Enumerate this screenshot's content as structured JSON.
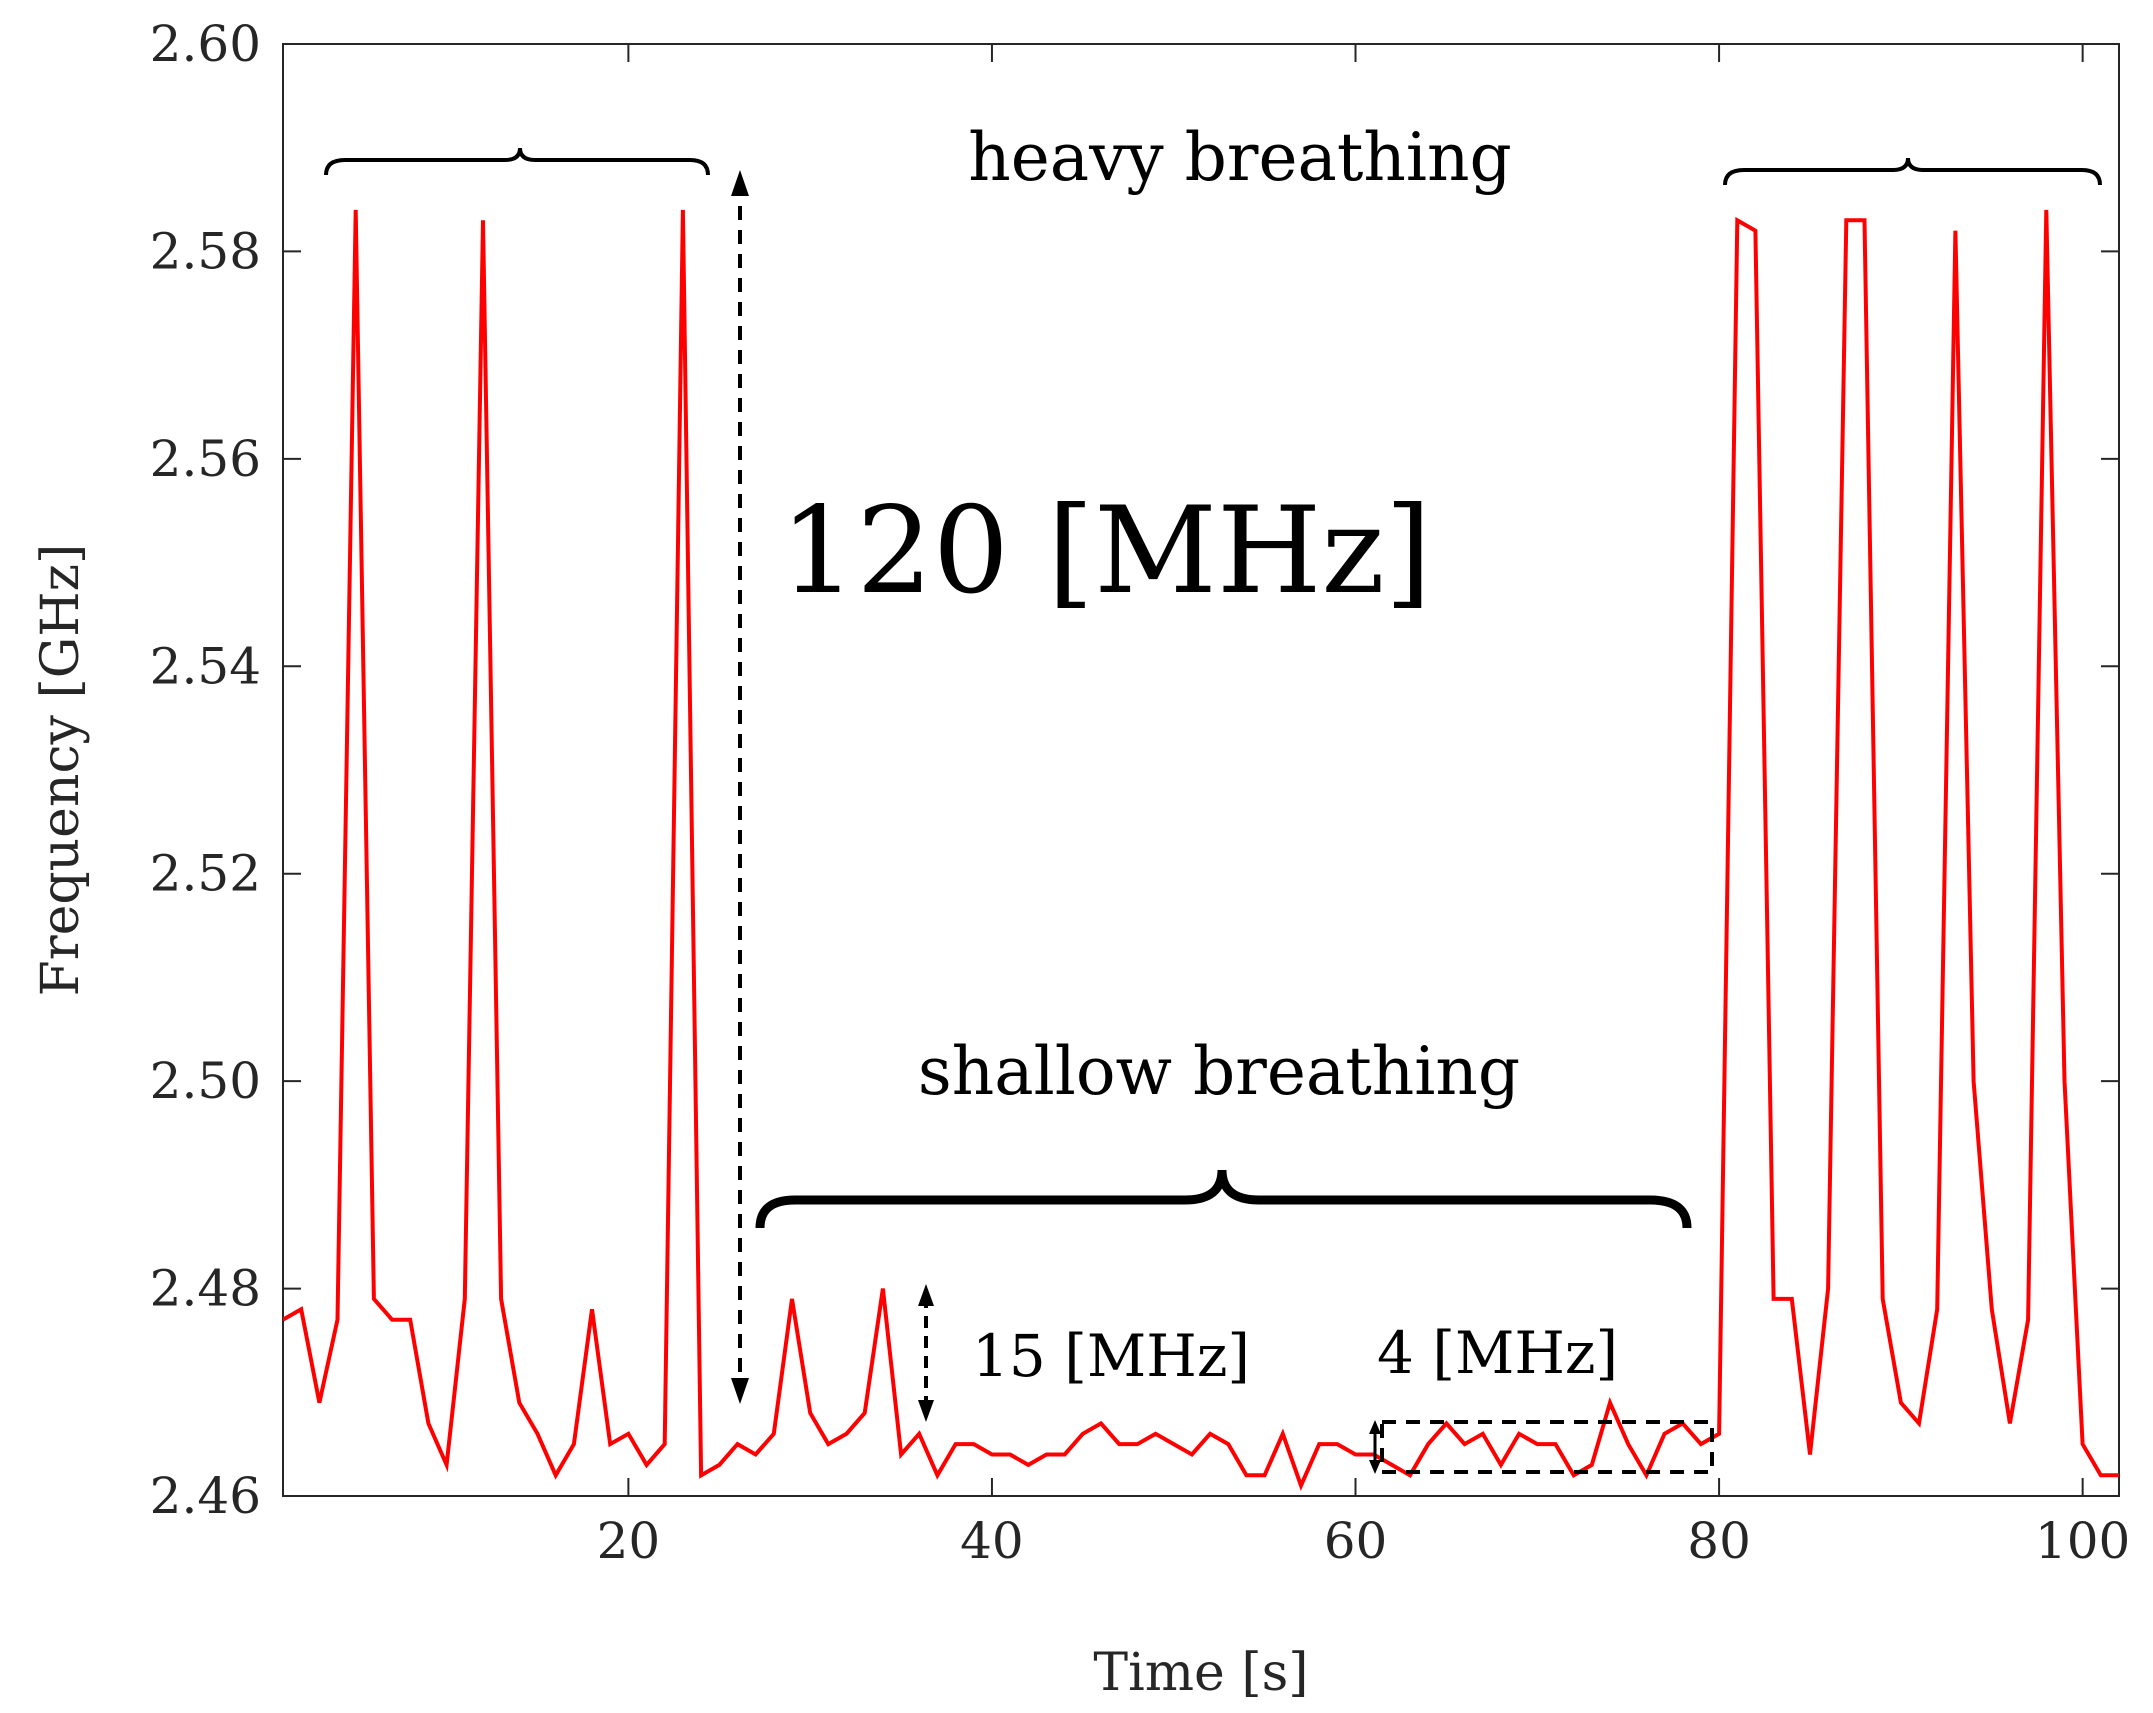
{
  "chart_data": {
    "type": "line",
    "title": "",
    "xlabel": "Time [s]",
    "ylabel": "Frequency [GHz]",
    "xlim": [
      1,
      102
    ],
    "ylim": [
      2.46,
      2.6
    ],
    "xticks": [
      20,
      40,
      60,
      80,
      100
    ],
    "xtick_labels": [
      "20",
      "40",
      "60",
      "80",
      "100"
    ],
    "yticks": [
      2.46,
      2.48,
      2.5,
      2.52,
      2.54,
      2.56,
      2.58,
      2.6
    ],
    "ytick_labels": [
      "2.46",
      "2.48",
      "2.50",
      "2.52",
      "2.54",
      "2.56",
      "2.58",
      "2.60"
    ],
    "grid": false,
    "series": [
      {
        "name": "frequency",
        "color": "#ff0000",
        "x": [
          1,
          2,
          3,
          4,
          5,
          6,
          7,
          8,
          9,
          10,
          11,
          12,
          13,
          14,
          15,
          16,
          17,
          18,
          19,
          20,
          21,
          22,
          23,
          24,
          25,
          26,
          27,
          28,
          29,
          30,
          31,
          32,
          33,
          34,
          35,
          36,
          37,
          38,
          39,
          40,
          41,
          42,
          43,
          44,
          45,
          46,
          47,
          48,
          49,
          50,
          51,
          52,
          53,
          54,
          55,
          56,
          57,
          58,
          59,
          60,
          61,
          62,
          63,
          64,
          65,
          66,
          67,
          68,
          69,
          70,
          71,
          72,
          73,
          74,
          75,
          76,
          77,
          78,
          79,
          80,
          81,
          82,
          83,
          84,
          85,
          86,
          87,
          88,
          89,
          90,
          91,
          92,
          93,
          94,
          95,
          96,
          97,
          98,
          99,
          100,
          101,
          102
        ],
        "values": [
          2.477,
          2.478,
          2.469,
          2.477,
          2.584,
          2.479,
          2.477,
          2.477,
          2.467,
          2.463,
          2.479,
          2.583,
          2.479,
          2.469,
          2.466,
          2.462,
          2.465,
          2.478,
          2.465,
          2.466,
          2.463,
          2.465,
          2.584,
          2.462,
          2.463,
          2.465,
          2.464,
          2.466,
          2.479,
          2.468,
          2.465,
          2.466,
          2.468,
          2.48,
          2.464,
          2.466,
          2.462,
          2.465,
          2.465,
          2.464,
          2.464,
          2.463,
          2.464,
          2.464,
          2.466,
          2.467,
          2.465,
          2.465,
          2.466,
          2.465,
          2.464,
          2.466,
          2.465,
          2.462,
          2.462,
          2.466,
          2.461,
          2.465,
          2.465,
          2.464,
          2.464,
          2.463,
          2.462,
          2.465,
          2.467,
          2.465,
          2.466,
          2.463,
          2.466,
          2.465,
          2.465,
          2.462,
          2.463,
          2.469,
          2.465,
          2.462,
          2.466,
          2.467,
          2.465,
          2.466,
          2.583,
          2.582,
          2.479,
          2.479,
          2.464,
          2.48,
          2.583,
          2.583,
          2.479,
          2.469,
          2.467,
          2.478,
          2.582,
          2.5,
          2.478,
          2.467,
          2.477,
          2.584,
          2.5,
          2.465,
          2.462,
          2.462
        ]
      }
    ],
    "annotations": {
      "heavy_label": "heavy breathing",
      "shallow_label": "shallow breathing",
      "big_delta": "120 [MHz]",
      "mid_delta": "15 [MHz]",
      "small_delta": "4 [MHz]"
    }
  }
}
